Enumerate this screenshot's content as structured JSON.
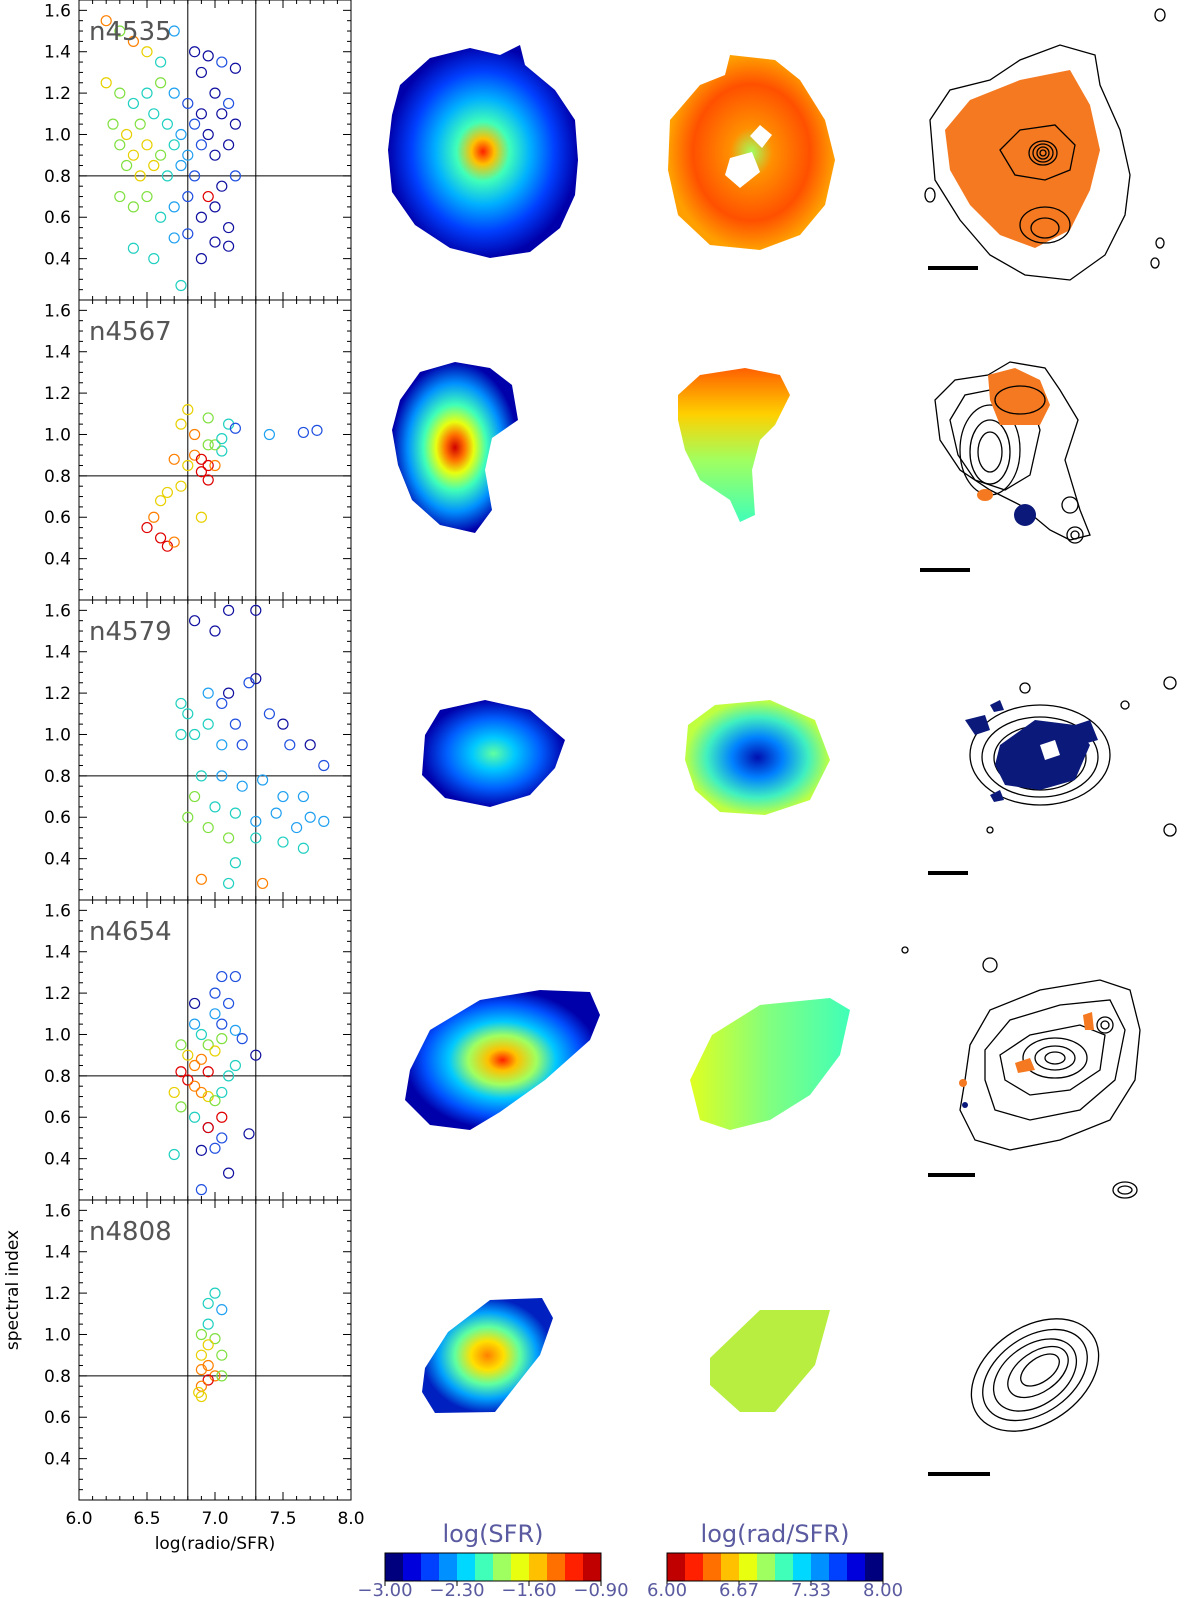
{
  "chart_data": {
    "type": "scatter",
    "xlabel": "log(radio/SFR)",
    "ylabel": "spectral index",
    "xlim": [
      6.0,
      8.0
    ],
    "ylim": [
      0.2,
      1.65
    ],
    "x_ticks": [
      "6.0",
      "6.5",
      "7.0",
      "7.5",
      "8.0"
    ],
    "y_ticks": [
      "0.2",
      "0.4",
      "0.6",
      "0.8",
      "1.0",
      "1.2",
      "1.4",
      "1.6"
    ],
    "reference_lines": {
      "x": [
        6.8,
        7.3
      ],
      "y": [
        0.8
      ]
    },
    "panels": [
      {
        "name": "n4535",
        "points": [
          [
            6.2,
            1.55,
            1
          ],
          [
            6.3,
            1.5,
            3
          ],
          [
            6.4,
            1.45,
            1
          ],
          [
            6.5,
            1.4,
            2
          ],
          [
            6.6,
            1.35,
            4
          ],
          [
            6.7,
            1.5,
            5
          ],
          [
            6.85,
            1.4,
            7
          ],
          [
            6.9,
            1.3,
            7
          ],
          [
            6.95,
            1.38,
            7
          ],
          [
            7.05,
            1.35,
            6
          ],
          [
            7.15,
            1.32,
            7
          ],
          [
            6.2,
            1.25,
            2
          ],
          [
            6.3,
            1.2,
            3
          ],
          [
            6.4,
            1.15,
            4
          ],
          [
            6.5,
            1.2,
            4
          ],
          [
            6.6,
            1.25,
            3
          ],
          [
            6.7,
            1.2,
            5
          ],
          [
            6.8,
            1.15,
            6
          ],
          [
            6.9,
            1.1,
            7
          ],
          [
            7.0,
            1.2,
            7
          ],
          [
            7.1,
            1.15,
            6
          ],
          [
            6.25,
            1.05,
            3
          ],
          [
            6.35,
            1.0,
            2
          ],
          [
            6.45,
            1.05,
            3
          ],
          [
            6.55,
            1.1,
            4
          ],
          [
            6.65,
            1.05,
            4
          ],
          [
            6.75,
            1.0,
            5
          ],
          [
            6.85,
            1.05,
            6
          ],
          [
            6.95,
            1.0,
            7
          ],
          [
            7.05,
            1.1,
            7
          ],
          [
            7.15,
            1.05,
            7
          ],
          [
            6.3,
            0.95,
            3
          ],
          [
            6.4,
            0.9,
            2
          ],
          [
            6.5,
            0.95,
            2
          ],
          [
            6.6,
            0.9,
            3
          ],
          [
            6.7,
            0.95,
            4
          ],
          [
            6.8,
            0.9,
            5
          ],
          [
            6.9,
            0.95,
            6
          ],
          [
            7.0,
            0.9,
            7
          ],
          [
            7.1,
            0.95,
            7
          ],
          [
            6.35,
            0.85,
            3
          ],
          [
            6.45,
            0.8,
            2
          ],
          [
            6.55,
            0.85,
            2
          ],
          [
            6.65,
            0.8,
            4
          ],
          [
            6.75,
            0.85,
            5
          ],
          [
            6.85,
            0.8,
            6
          ],
          [
            6.95,
            0.7,
            0
          ],
          [
            7.05,
            0.75,
            7
          ],
          [
            7.15,
            0.8,
            6
          ],
          [
            6.3,
            0.7,
            3
          ],
          [
            6.4,
            0.65,
            3
          ],
          [
            6.5,
            0.7,
            3
          ],
          [
            6.6,
            0.6,
            4
          ],
          [
            6.7,
            0.65,
            5
          ],
          [
            6.8,
            0.7,
            6
          ],
          [
            6.9,
            0.6,
            7
          ],
          [
            7.0,
            0.65,
            7
          ],
          [
            7.1,
            0.55,
            7
          ],
          [
            6.4,
            0.45,
            4
          ],
          [
            6.55,
            0.4,
            4
          ],
          [
            6.7,
            0.5,
            5
          ],
          [
            6.8,
            0.52,
            6
          ],
          [
            6.9,
            0.4,
            7
          ],
          [
            7.0,
            0.48,
            7
          ],
          [
            7.1,
            0.46,
            7
          ],
          [
            6.75,
            0.27,
            4
          ]
        ]
      },
      {
        "name": "n4567",
        "points": [
          [
            6.8,
            1.12,
            2
          ],
          [
            6.95,
            1.08,
            3
          ],
          [
            7.1,
            1.05,
            4
          ],
          [
            7.15,
            1.03,
            6
          ],
          [
            7.4,
            1.0,
            5
          ],
          [
            7.65,
            1.01,
            6
          ],
          [
            7.75,
            1.02,
            6
          ],
          [
            6.75,
            1.05,
            2
          ],
          [
            6.85,
            1.0,
            1
          ],
          [
            6.95,
            0.95,
            3
          ],
          [
            7.05,
            0.92,
            4
          ],
          [
            6.85,
            0.9,
            1
          ],
          [
            6.9,
            0.88,
            0
          ],
          [
            6.95,
            0.85,
            0
          ],
          [
            6.9,
            0.82,
            0
          ],
          [
            7.0,
            0.85,
            1
          ],
          [
            6.95,
            0.78,
            0
          ],
          [
            6.8,
            0.85,
            2
          ],
          [
            6.7,
            0.88,
            1
          ],
          [
            6.75,
            0.75,
            2
          ],
          [
            6.65,
            0.72,
            2
          ],
          [
            6.6,
            0.68,
            2
          ],
          [
            6.55,
            0.6,
            1
          ],
          [
            6.5,
            0.55,
            0
          ],
          [
            6.6,
            0.5,
            0
          ],
          [
            6.65,
            0.46,
            0
          ],
          [
            6.7,
            0.48,
            1
          ],
          [
            6.9,
            0.6,
            2
          ],
          [
            7.0,
            0.95,
            3
          ],
          [
            7.05,
            0.98,
            4
          ]
        ]
      },
      {
        "name": "n4579",
        "points": [
          [
            6.85,
            1.55,
            7
          ],
          [
            7.0,
            1.5,
            7
          ],
          [
            7.1,
            1.6,
            7
          ],
          [
            7.3,
            1.6,
            7
          ],
          [
            7.3,
            1.27,
            7
          ],
          [
            7.25,
            1.25,
            6
          ],
          [
            6.75,
            1.15,
            4
          ],
          [
            6.8,
            1.1,
            4
          ],
          [
            6.95,
            1.2,
            5
          ],
          [
            7.05,
            1.15,
            6
          ],
          [
            7.1,
            1.2,
            7
          ],
          [
            7.15,
            1.05,
            6
          ],
          [
            7.4,
            1.1,
            6
          ],
          [
            7.5,
            1.05,
            7
          ],
          [
            6.95,
            1.05,
            4
          ],
          [
            6.75,
            1.0,
            4
          ],
          [
            6.85,
            1.0,
            4
          ],
          [
            7.05,
            0.95,
            5
          ],
          [
            7.2,
            0.95,
            6
          ],
          [
            7.55,
            0.95,
            6
          ],
          [
            7.7,
            0.95,
            7
          ],
          [
            7.8,
            0.85,
            6
          ],
          [
            6.9,
            0.8,
            4
          ],
          [
            7.05,
            0.8,
            5
          ],
          [
            7.2,
            0.75,
            5
          ],
          [
            7.35,
            0.78,
            5
          ],
          [
            7.5,
            0.7,
            5
          ],
          [
            7.65,
            0.7,
            5
          ],
          [
            6.85,
            0.7,
            3
          ],
          [
            7.0,
            0.65,
            4
          ],
          [
            7.15,
            0.62,
            4
          ],
          [
            7.3,
            0.58,
            5
          ],
          [
            7.45,
            0.62,
            5
          ],
          [
            7.6,
            0.55,
            5
          ],
          [
            7.7,
            0.6,
            5
          ],
          [
            7.8,
            0.58,
            5
          ],
          [
            6.8,
            0.6,
            3
          ],
          [
            6.95,
            0.55,
            3
          ],
          [
            7.1,
            0.5,
            3
          ],
          [
            7.3,
            0.5,
            4
          ],
          [
            7.5,
            0.48,
            4
          ],
          [
            7.65,
            0.45,
            4
          ],
          [
            6.9,
            0.3,
            1
          ],
          [
            7.35,
            0.28,
            1
          ],
          [
            7.15,
            0.38,
            4
          ],
          [
            7.1,
            0.28,
            4
          ]
        ]
      },
      {
        "name": "n4654",
        "points": [
          [
            7.05,
            1.28,
            6
          ],
          [
            7.15,
            1.28,
            6
          ],
          [
            7.0,
            1.2,
            6
          ],
          [
            7.1,
            1.15,
            6
          ],
          [
            6.85,
            1.15,
            7
          ],
          [
            7.0,
            1.1,
            5
          ],
          [
            7.05,
            1.05,
            6
          ],
          [
            7.15,
            1.02,
            5
          ],
          [
            6.85,
            1.05,
            5
          ],
          [
            6.9,
            1.0,
            4
          ],
          [
            6.95,
            0.95,
            3
          ],
          [
            7.05,
            0.98,
            3
          ],
          [
            7.0,
            0.92,
            2
          ],
          [
            6.75,
            0.95,
            3
          ],
          [
            6.8,
            0.9,
            2
          ],
          [
            6.85,
            0.85,
            1
          ],
          [
            6.9,
            0.88,
            1
          ],
          [
            6.95,
            0.82,
            0
          ],
          [
            6.75,
            0.82,
            0
          ],
          [
            6.8,
            0.78,
            0
          ],
          [
            6.85,
            0.75,
            1
          ],
          [
            6.9,
            0.72,
            1
          ],
          [
            6.95,
            0.7,
            2
          ],
          [
            7.0,
            0.68,
            3
          ],
          [
            7.05,
            0.72,
            4
          ],
          [
            7.1,
            0.8,
            4
          ],
          [
            7.15,
            0.85,
            4
          ],
          [
            6.7,
            0.72,
            2
          ],
          [
            6.75,
            0.65,
            3
          ],
          [
            6.85,
            0.6,
            4
          ],
          [
            6.95,
            0.55,
            6
          ],
          [
            7.05,
            0.5,
            6
          ],
          [
            7.0,
            0.45,
            6
          ],
          [
            6.9,
            0.44,
            7
          ],
          [
            7.1,
            0.33,
            7
          ],
          [
            6.9,
            0.25,
            6
          ],
          [
            6.7,
            0.42,
            4
          ],
          [
            6.95,
            0.55,
            0
          ],
          [
            7.05,
            0.6,
            0
          ],
          [
            7.2,
            0.98,
            6
          ],
          [
            7.3,
            0.9,
            7
          ],
          [
            7.25,
            0.52,
            7
          ]
        ]
      },
      {
        "name": "n4808",
        "points": [
          [
            7.0,
            1.2,
            4
          ],
          [
            6.95,
            1.15,
            4
          ],
          [
            7.05,
            1.12,
            5
          ],
          [
            6.95,
            1.05,
            4
          ],
          [
            6.9,
            1.0,
            3
          ],
          [
            7.0,
            0.98,
            3
          ],
          [
            6.95,
            0.95,
            2
          ],
          [
            6.9,
            0.9,
            2
          ],
          [
            7.05,
            0.9,
            3
          ],
          [
            6.95,
            0.85,
            1
          ],
          [
            6.9,
            0.83,
            1
          ],
          [
            7.0,
            0.8,
            1
          ],
          [
            6.95,
            0.78,
            0
          ],
          [
            6.9,
            0.75,
            1
          ],
          [
            6.88,
            0.72,
            2
          ],
          [
            6.9,
            0.7,
            2
          ],
          [
            7.05,
            0.8,
            3
          ]
        ]
      }
    ],
    "colorbars": [
      {
        "label": "log(SFR)",
        "ticks": [
          "−3.00",
          "−2.30",
          "−1.60",
          "−0.90"
        ],
        "colors": [
          "#00007f",
          "#0000dd",
          "#0040ff",
          "#0090ff",
          "#00d8ff",
          "#40ffb8",
          "#a0ff60",
          "#e8ff10",
          "#ffc000",
          "#ff7000",
          "#ff2000",
          "#c00000"
        ]
      },
      {
        "label": "log(rad/SFR)",
        "ticks": [
          "6.00",
          "6.67",
          "7.33",
          "8.00"
        ],
        "colors": [
          "#c00000",
          "#ff2000",
          "#ff7000",
          "#ffc000",
          "#e8ff10",
          "#a0ff60",
          "#40ffb8",
          "#00d8ff",
          "#0090ff",
          "#0040ff",
          "#0000dd",
          "#00007f"
        ]
      }
    ],
    "point_colors": [
      "#e00000",
      "#ff8000",
      "#e8d000",
      "#80e040",
      "#20d0c0",
      "#20a0f0",
      "#2050e0",
      "#1010a0"
    ],
    "contour_color": "#000000",
    "highlight_colors": {
      "orange": "#f47920",
      "navy": "#0b1a7a"
    }
  }
}
